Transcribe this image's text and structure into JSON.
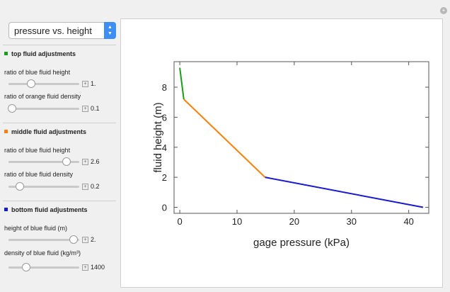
{
  "dropdown": {
    "selected": "pressure vs. height"
  },
  "sections": [
    {
      "title": "top fluid adjustments",
      "color": "#1a9e1a",
      "controls": [
        {
          "label": "ratio of blue fluid height",
          "value": "1.",
          "fraction": 0.32
        },
        {
          "label": "ratio of orange fluid density",
          "value": "0.1",
          "fraction": 0.05
        }
      ]
    },
    {
      "title": "middle fluid adjustments",
      "color": "#f5820d",
      "controls": [
        {
          "label": "ratio of blue fluid height",
          "value": "2.6",
          "fraction": 0.82
        },
        {
          "label": "ratio of blue fluid density",
          "value": "0.2",
          "fraction": 0.16
        }
      ]
    },
    {
      "title": "bottom fluid adjustments",
      "color": "#1a1ad0",
      "controls": [
        {
          "label": "height of blue fluid (m)",
          "value": "2.",
          "fraction": 0.92
        },
        {
          "label": "density of blue fluid (kg/m³)",
          "value": "1400",
          "fraction": 0.25
        }
      ]
    }
  ],
  "chart_data": {
    "type": "line",
    "xlabel": "gage pressure (kPa)",
    "ylabel": "fluid  height  (m)",
    "xlim": [
      -1,
      43.5
    ],
    "ylim": [
      -0.4,
      9.7
    ],
    "xticks": [
      0,
      10,
      20,
      30,
      40
    ],
    "yticks": [
      0,
      2,
      4,
      6,
      8
    ],
    "grid": false,
    "series": [
      {
        "color": "#1a9e1a",
        "x": [
          0,
          0.7
        ],
        "y": [
          9.3,
          7.2
        ]
      },
      {
        "color": "#f5820d",
        "x": [
          0.7,
          14.9
        ],
        "y": [
          7.2,
          2.0
        ]
      },
      {
        "color": "#1a1ad0",
        "x": [
          14.9,
          42.5
        ],
        "y": [
          2.0,
          0
        ]
      }
    ]
  }
}
